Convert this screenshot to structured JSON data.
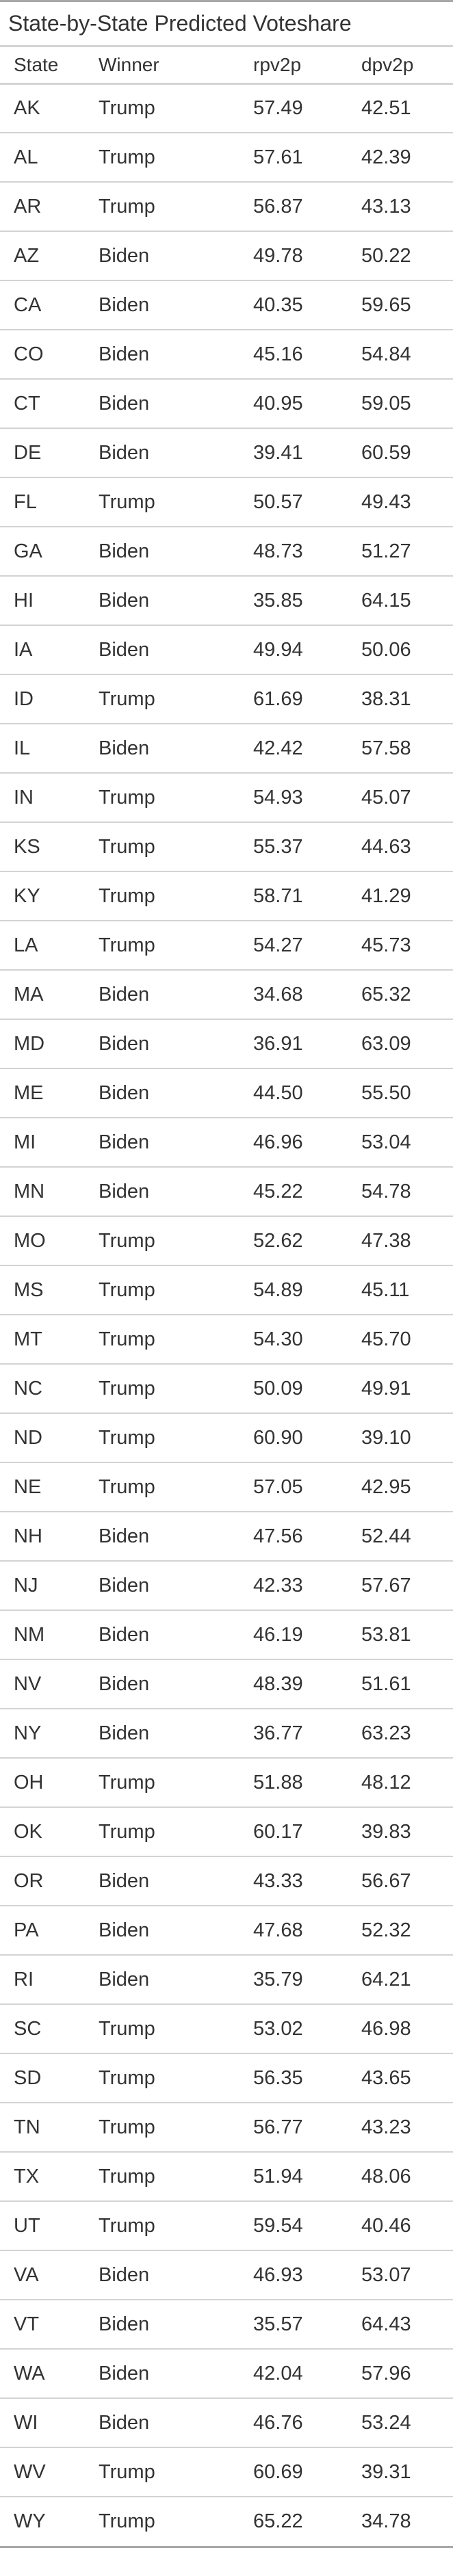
{
  "title": "State-by-State Predicted Voteshare",
  "columns": [
    "State",
    "Winner",
    "rpv2p",
    "dpv2p"
  ],
  "rows": [
    [
      "AK",
      "Trump",
      "57.49",
      "42.51"
    ],
    [
      "AL",
      "Trump",
      "57.61",
      "42.39"
    ],
    [
      "AR",
      "Trump",
      "56.87",
      "43.13"
    ],
    [
      "AZ",
      "Biden",
      "49.78",
      "50.22"
    ],
    [
      "CA",
      "Biden",
      "40.35",
      "59.65"
    ],
    [
      "CO",
      "Biden",
      "45.16",
      "54.84"
    ],
    [
      "CT",
      "Biden",
      "40.95",
      "59.05"
    ],
    [
      "DE",
      "Biden",
      "39.41",
      "60.59"
    ],
    [
      "FL",
      "Trump",
      "50.57",
      "49.43"
    ],
    [
      "GA",
      "Biden",
      "48.73",
      "51.27"
    ],
    [
      "HI",
      "Biden",
      "35.85",
      "64.15"
    ],
    [
      "IA",
      "Biden",
      "49.94",
      "50.06"
    ],
    [
      "ID",
      "Trump",
      "61.69",
      "38.31"
    ],
    [
      "IL",
      "Biden",
      "42.42",
      "57.58"
    ],
    [
      "IN",
      "Trump",
      "54.93",
      "45.07"
    ],
    [
      "KS",
      "Trump",
      "55.37",
      "44.63"
    ],
    [
      "KY",
      "Trump",
      "58.71",
      "41.29"
    ],
    [
      "LA",
      "Trump",
      "54.27",
      "45.73"
    ],
    [
      "MA",
      "Biden",
      "34.68",
      "65.32"
    ],
    [
      "MD",
      "Biden",
      "36.91",
      "63.09"
    ],
    [
      "ME",
      "Biden",
      "44.50",
      "55.50"
    ],
    [
      "MI",
      "Biden",
      "46.96",
      "53.04"
    ],
    [
      "MN",
      "Biden",
      "45.22",
      "54.78"
    ],
    [
      "MO",
      "Trump",
      "52.62",
      "47.38"
    ],
    [
      "MS",
      "Trump",
      "54.89",
      "45.11"
    ],
    [
      "MT",
      "Trump",
      "54.30",
      "45.70"
    ],
    [
      "NC",
      "Trump",
      "50.09",
      "49.91"
    ],
    [
      "ND",
      "Trump",
      "60.90",
      "39.10"
    ],
    [
      "NE",
      "Trump",
      "57.05",
      "42.95"
    ],
    [
      "NH",
      "Biden",
      "47.56",
      "52.44"
    ],
    [
      "NJ",
      "Biden",
      "42.33",
      "57.67"
    ],
    [
      "NM",
      "Biden",
      "46.19",
      "53.81"
    ],
    [
      "NV",
      "Biden",
      "48.39",
      "51.61"
    ],
    [
      "NY",
      "Biden",
      "36.77",
      "63.23"
    ],
    [
      "OH",
      "Trump",
      "51.88",
      "48.12"
    ],
    [
      "OK",
      "Trump",
      "60.17",
      "39.83"
    ],
    [
      "OR",
      "Biden",
      "43.33",
      "56.67"
    ],
    [
      "PA",
      "Biden",
      "47.68",
      "52.32"
    ],
    [
      "RI",
      "Biden",
      "35.79",
      "64.21"
    ],
    [
      "SC",
      "Trump",
      "53.02",
      "46.98"
    ],
    [
      "SD",
      "Trump",
      "56.35",
      "43.65"
    ],
    [
      "TN",
      "Trump",
      "56.77",
      "43.23"
    ],
    [
      "TX",
      "Trump",
      "51.94",
      "48.06"
    ],
    [
      "UT",
      "Trump",
      "59.54",
      "40.46"
    ],
    [
      "VA",
      "Biden",
      "46.93",
      "53.07"
    ],
    [
      "VT",
      "Biden",
      "35.57",
      "64.43"
    ],
    [
      "WA",
      "Biden",
      "42.04",
      "57.96"
    ],
    [
      "WI",
      "Biden",
      "46.76",
      "53.24"
    ],
    [
      "WV",
      "Trump",
      "60.69",
      "39.31"
    ],
    [
      "WY",
      "Trump",
      "65.22",
      "34.78"
    ]
  ]
}
